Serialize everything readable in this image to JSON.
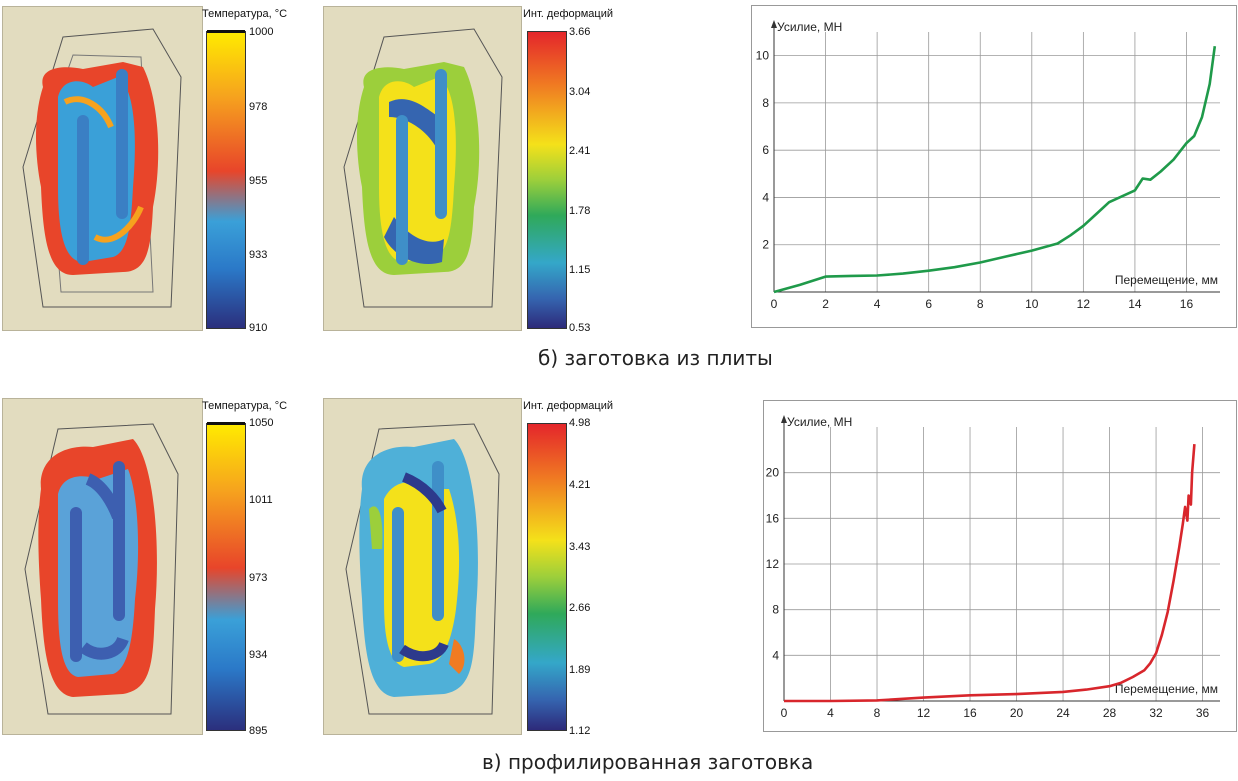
{
  "captions": {
    "top": "б) заготовка из плиты",
    "bottom": "в) профилированная заготовка"
  },
  "colorbars": {
    "row1_temp": {
      "title": "Температура, °C",
      "labels": [
        "1000",
        "978",
        "955",
        "933",
        "910"
      ]
    },
    "row1_def": {
      "title": "Инт. деформаций",
      "labels": [
        "3.66",
        "3.04",
        "2.41",
        "1.78",
        "1.15",
        "0.53"
      ]
    },
    "row2_temp": {
      "title": "Температура, °C",
      "labels": [
        "1050",
        "1011",
        "973",
        "934",
        "895"
      ]
    },
    "row2_def": {
      "title": "Инт. деформаций",
      "labels": [
        "4.98",
        "4.21",
        "3.43",
        "2.66",
        "1.89",
        "1.12"
      ]
    }
  },
  "colors": {
    "series_top": "#1f9a4a",
    "series_bottom": "#d8262c"
  },
  "chart_data": [
    {
      "type": "line",
      "ylabel": "Усилие, МН",
      "xlabel": "Перемещение, мм",
      "xlim": [
        0,
        17.3
      ],
      "ylim": [
        0,
        11
      ],
      "xticks": [
        "0",
        "2",
        "4",
        "6",
        "8",
        "10",
        "12",
        "14",
        "16"
      ],
      "yticks": [
        "2",
        "4",
        "6",
        "8",
        "10"
      ],
      "grid": true,
      "series": [
        {
          "x": [
            0,
            1,
            2,
            3,
            4,
            5,
            6,
            7,
            8,
            9,
            10,
            11,
            11.5,
            12,
            12.5,
            13,
            13.5,
            14,
            14.3,
            14.6,
            15,
            15.5,
            16,
            16.3,
            16.6,
            16.9,
            17.1
          ],
          "y": [
            0,
            0.3,
            0.65,
            0.68,
            0.7,
            0.78,
            0.9,
            1.05,
            1.25,
            1.5,
            1.75,
            2.05,
            2.4,
            2.8,
            3.3,
            3.8,
            4.05,
            4.3,
            4.8,
            4.75,
            5.1,
            5.6,
            6.3,
            6.6,
            7.4,
            8.8,
            10.4
          ]
        }
      ]
    },
    {
      "type": "line",
      "ylabel": "Усилие, МН",
      "xlabel": "Перемещение, мм",
      "xlim": [
        0,
        37.5
      ],
      "ylim": [
        0,
        24
      ],
      "xticks": [
        "0",
        "4",
        "8",
        "12",
        "16",
        "20",
        "24",
        "28",
        "32",
        "36"
      ],
      "yticks": [
        "4",
        "8",
        "12",
        "16",
        "20"
      ],
      "grid": true,
      "series": [
        {
          "x": [
            0,
            4,
            8,
            12,
            16,
            20,
            24,
            26,
            28,
            29,
            30,
            31,
            31.5,
            32,
            32.5,
            33,
            33.5,
            34,
            34.3,
            34.5,
            34.7,
            34.8,
            35,
            35.1,
            35.3
          ],
          "y": [
            0,
            0,
            0.05,
            0.3,
            0.5,
            0.6,
            0.8,
            1.0,
            1.3,
            1.6,
            2.1,
            2.7,
            3.3,
            4.2,
            5.8,
            7.8,
            10.5,
            13.5,
            15.5,
            17,
            15.8,
            18,
            17.2,
            20,
            22.5
          ]
        }
      ]
    }
  ]
}
